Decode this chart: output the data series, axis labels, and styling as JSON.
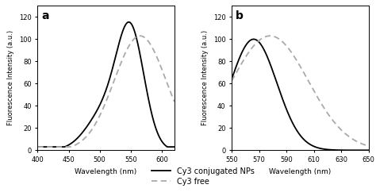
{
  "panel_a": {
    "label": "a",
    "xlabel": "Wavelength (nm)",
    "ylabel": "Fluorescence Intensity (a.u.)",
    "xlim": [
      400,
      620
    ],
    "ylim": [
      0,
      130
    ],
    "xticks": [
      400,
      450,
      500,
      550,
      600
    ],
    "yticks": [
      0,
      20,
      40,
      60,
      80,
      100,
      120
    ]
  },
  "panel_b": {
    "label": "b",
    "xlabel": "Wavelength (nm)",
    "ylabel": "Fluorescence Intensity (a.u.)",
    "xlim": [
      550,
      650
    ],
    "ylim": [
      0,
      130
    ],
    "xticks": [
      550,
      570,
      590,
      610,
      630,
      650
    ],
    "yticks": [
      0,
      20,
      40,
      60,
      80,
      100,
      120
    ]
  },
  "legend": {
    "solid_label": "Cy3 conjugated NPs",
    "dashed_label": "Cy3 free"
  },
  "colors": {
    "solid": "#000000",
    "dashed": "#aaaaaa"
  },
  "panel_a_solid": {
    "components": [
      {
        "peak": 550,
        "sigma": 22,
        "amp": 100
      },
      {
        "peak": 510,
        "sigma": 30,
        "amp": 35
      }
    ],
    "x_start": 428,
    "baseline": 3
  },
  "panel_a_dashed": {
    "components": [
      {
        "peak": 565,
        "sigma": 42,
        "amp": 103
      }
    ],
    "x_start": 425,
    "baseline": 3
  },
  "panel_b_solid": {
    "components": [
      {
        "peak": 566,
        "sigma": 17,
        "amp": 100
      }
    ],
    "x_start": 550,
    "baseline": 0
  },
  "panel_b_dashed": {
    "components": [
      {
        "peak": 578,
        "sigma": 28,
        "amp": 103
      }
    ],
    "x_start": 550,
    "baseline": 0
  }
}
